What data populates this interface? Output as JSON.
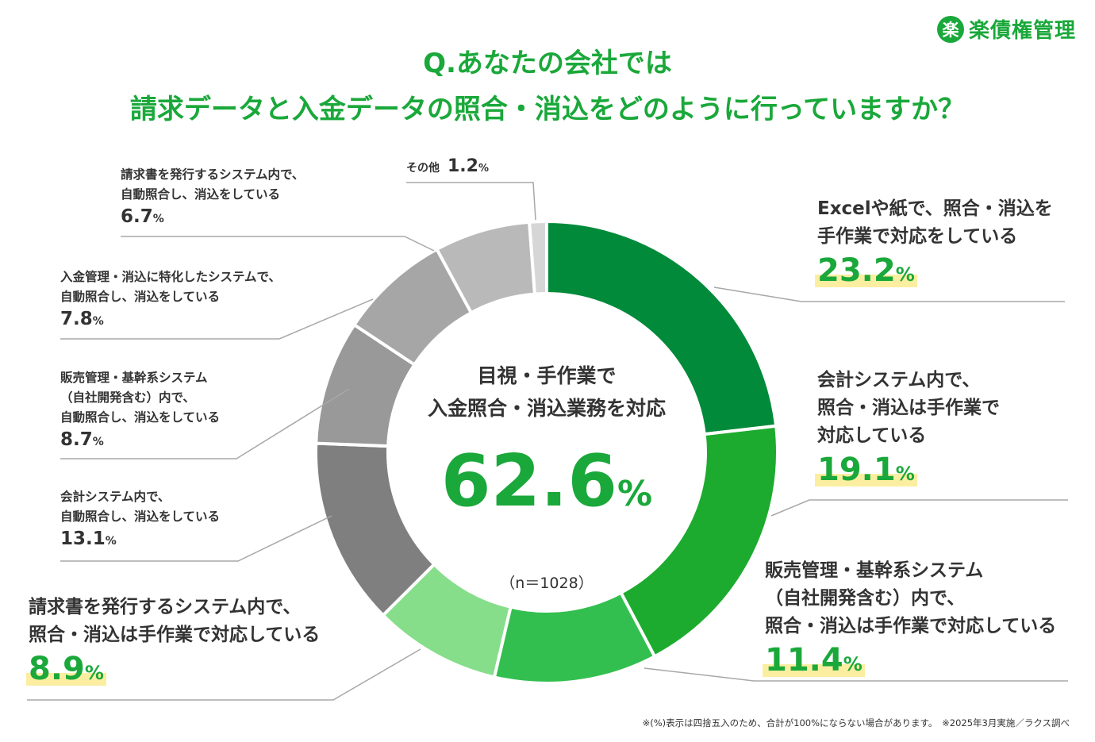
{
  "brand": {
    "mark": "楽",
    "name": "楽債権管理"
  },
  "title": {
    "line1": "Q.あなたの会社では",
    "line2": "請求データと入金データの照合・消込をどのように行っていますか？"
  },
  "center": {
    "caption_line1": "目視・手作業で",
    "caption_line2": "入金照合・消込業務を対応",
    "value": "62.6",
    "unit": "%"
  },
  "sample_size": "（n＝1028）",
  "footnote": "※(%)表示は四捨五入のため、合計が100%にならない場合があります。　※2025年3月実施／ラクス調べ",
  "colors": {
    "accent": "#1aa83a",
    "highlight": "#fbeea0",
    "slices": [
      "#008a3a",
      "#1cab2e",
      "#33bf4f",
      "#86de8a",
      "#7f7f7f",
      "#999999",
      "#a6a6a6",
      "#b9b9b9",
      "#d6d6d6"
    ]
  },
  "chart_data": {
    "type": "donut",
    "unit": "%",
    "slices": [
      {
        "label_lines": [
          "Excelや紙で、照合・消込を",
          "手作業で対応をしている"
        ],
        "value": 23.2,
        "display": "23.2"
      },
      {
        "label_lines": [
          "会計システム内で、",
          "照合・消込は手作業で",
          "対応している"
        ],
        "value": 19.1,
        "display": "19.1"
      },
      {
        "label_lines": [
          "販売管理・基幹系システム",
          "（自社開発含む）内で、",
          "照合・消込は手作業で対応している"
        ],
        "value": 11.4,
        "display": "11.4"
      },
      {
        "label_lines": [
          "請求書を発行するシステム内で、",
          "照合・消込は手作業で対応している"
        ],
        "value": 8.9,
        "display": "8.9"
      },
      {
        "label_lines": [
          "会計システム内で、",
          "自動照合し、消込をしている"
        ],
        "value": 13.1,
        "display": "13.1"
      },
      {
        "label_lines": [
          "販売管理・基幹系システム",
          "（自社開発含む）内で、",
          "自動照合し、消込をしている"
        ],
        "value": 8.7,
        "display": "8.7"
      },
      {
        "label_lines": [
          "入金管理・消込に特化したシステムで、",
          "自動照合し、消込をしている"
        ],
        "value": 7.8,
        "display": "7.8"
      },
      {
        "label_lines": [
          "請求書を発行するシステム内で、",
          "自動照合し、消込をしている"
        ],
        "value": 6.7,
        "display": "6.7"
      },
      {
        "label_lines": [
          "その他"
        ],
        "value": 1.2,
        "display": "1.2"
      }
    ]
  }
}
